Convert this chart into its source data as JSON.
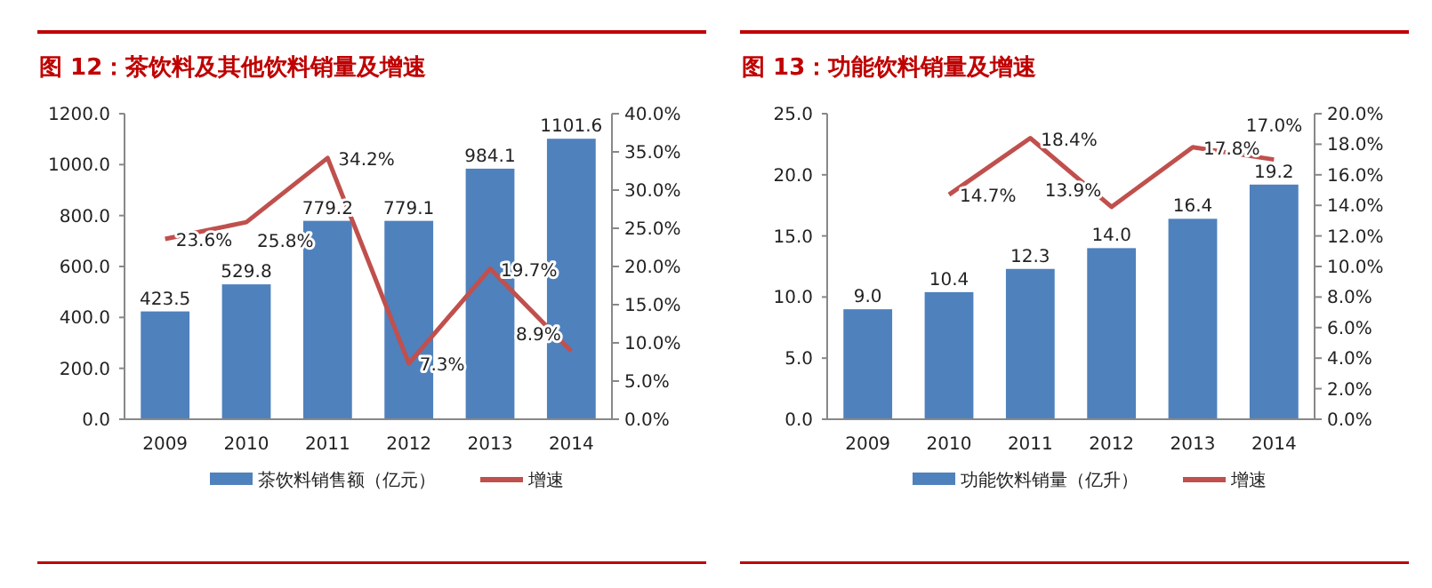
{
  "chart_data": [
    {
      "type": "bar",
      "title": "图 12：茶饮料及其他饮料销量及增速",
      "categories": [
        "2009",
        "2010",
        "2011",
        "2012",
        "2013",
        "2014"
      ],
      "series": [
        {
          "name": "茶饮料销售额（亿元）",
          "type": "bar",
          "color": "#4f81bd",
          "values": [
            423.5,
            529.8,
            779.2,
            779.1,
            984.1,
            1101.6
          ],
          "value_labels": [
            "423.5",
            "529.8",
            "779.2",
            "779.1",
            "984.1",
            "1101.6"
          ]
        },
        {
          "name": "增速",
          "type": "line",
          "axis": "y2",
          "color": "#c0504d",
          "values": [
            23.6,
            25.8,
            34.2,
            7.3,
            19.7,
            8.9
          ],
          "value_labels": [
            "23.6%",
            "25.8%",
            "34.2%",
            "7.3%",
            "19.7%",
            "8.9%"
          ]
        }
      ],
      "ylim": [
        0,
        1200
      ],
      "yticks": [
        {
          "value": 0,
          "label": "0.0"
        },
        {
          "value": 200,
          "label": "200.0"
        },
        {
          "value": 400,
          "label": "400.0"
        },
        {
          "value": 600,
          "label": "600.0"
        },
        {
          "value": 800,
          "label": "800.0"
        },
        {
          "value": 1000,
          "label": "1000.0"
        },
        {
          "value": 1200,
          "label": "1200.0"
        }
      ],
      "y2lim": [
        0,
        40
      ],
      "y2ticks": [
        {
          "value": 0,
          "label": "0.0%"
        },
        {
          "value": 5,
          "label": "5.0%"
        },
        {
          "value": 10,
          "label": "10.0%"
        },
        {
          "value": 15,
          "label": "15.0%"
        },
        {
          "value": 20,
          "label": "20.0%"
        },
        {
          "value": 25,
          "label": "25.0%"
        },
        {
          "value": 30,
          "label": "30.0%"
        },
        {
          "value": 35,
          "label": "35.0%"
        },
        {
          "value": 40,
          "label": "40.0%"
        }
      ],
      "legend": "bottom",
      "grid": false
    },
    {
      "type": "bar",
      "title": "图 13：功能饮料销量及增速",
      "categories": [
        "2009",
        "2010",
        "2011",
        "2012",
        "2013",
        "2014"
      ],
      "series": [
        {
          "name": "功能饮料销量（亿升）",
          "type": "bar",
          "color": "#4f81bd",
          "values": [
            9.0,
            10.4,
            12.3,
            14.0,
            16.4,
            19.2
          ],
          "value_labels": [
            "9.0",
            "10.4",
            "12.3",
            "14.0",
            "16.4",
            "19.2"
          ]
        },
        {
          "name": "增速",
          "type": "line",
          "axis": "y2",
          "color": "#c0504d",
          "values": [
            null,
            14.7,
            18.4,
            13.9,
            17.8,
            17.0
          ],
          "value_labels": [
            null,
            "14.7%",
            "18.4%",
            "13.9%",
            "17.8%",
            "17.0%"
          ]
        }
      ],
      "ylim": [
        0,
        25
      ],
      "yticks": [
        {
          "value": 0,
          "label": "0.0"
        },
        {
          "value": 5,
          "label": "5.0"
        },
        {
          "value": 10,
          "label": "10.0"
        },
        {
          "value": 15,
          "label": "15.0"
        },
        {
          "value": 20,
          "label": "20.0"
        },
        {
          "value": 25,
          "label": "25.0"
        }
      ],
      "y2lim": [
        0,
        20
      ],
      "y2ticks": [
        {
          "value": 0,
          "label": "0.0%"
        },
        {
          "value": 2,
          "label": "2.0%"
        },
        {
          "value": 4,
          "label": "4.0%"
        },
        {
          "value": 6,
          "label": "6.0%"
        },
        {
          "value": 8,
          "label": "8.0%"
        },
        {
          "value": 10,
          "label": "10.0%"
        },
        {
          "value": 12,
          "label": "12.0%"
        },
        {
          "value": 14,
          "label": "14.0%"
        },
        {
          "value": 16,
          "label": "16.0%"
        },
        {
          "value": 18,
          "label": "18.0%"
        },
        {
          "value": 20,
          "label": "20.0%"
        }
      ],
      "legend": "bottom",
      "grid": false
    }
  ]
}
